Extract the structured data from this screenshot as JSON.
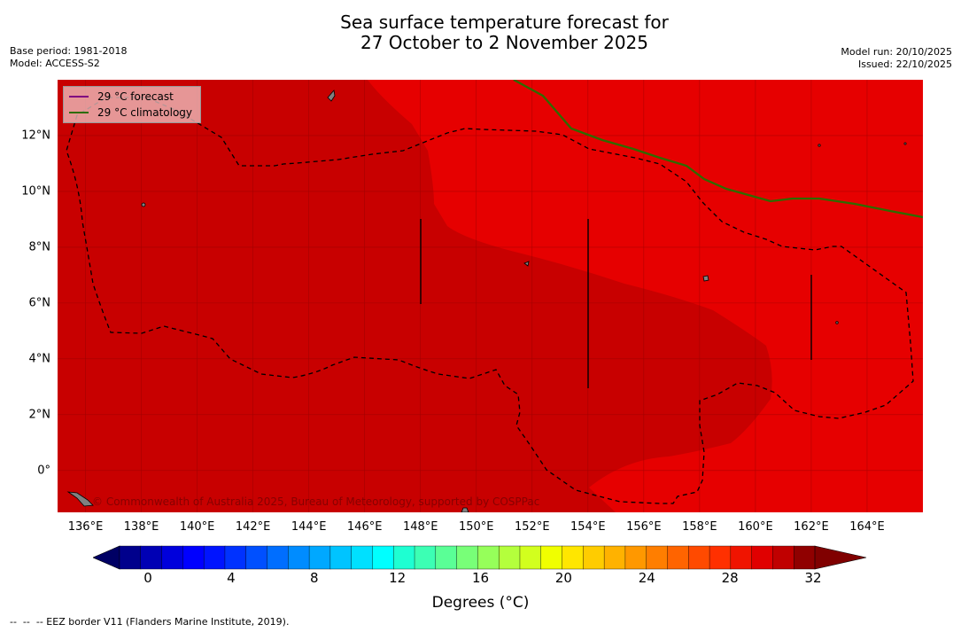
{
  "title": {
    "line1": "Sea surface temperature forecast for",
    "line2": "27 October to 2 November 2025"
  },
  "meta": {
    "base_period": "Base period: 1981-2018",
    "model": "Model: ACCESS-S2",
    "model_run": "Model run: 20/10/2025",
    "issued": "Issued: 22/10/2025"
  },
  "legend": {
    "forecast_label": "29 °C  forecast",
    "forecast_color": "#800080",
    "climatology_label": "29 °C  climatology",
    "climatology_color": "#2e6b00"
  },
  "map": {
    "lon_range": [
      135,
      166
    ],
    "lat_range": [
      -1.5,
      14
    ],
    "x_ticks": [
      "136°E",
      "138°E",
      "140°E",
      "142°E",
      "144°E",
      "146°E",
      "148°E",
      "150°E",
      "152°E",
      "154°E",
      "156°E",
      "158°E",
      "160°E",
      "162°E",
      "164°E"
    ],
    "y_ticks": [
      "12°N",
      "10°N",
      "8°N",
      "6°N",
      "4°N",
      "2°N",
      "0°"
    ],
    "colors": {
      "warm_region": "#c80000",
      "hot_region": "#e60000",
      "land": "#808080"
    },
    "copyright": "© Commonwealth of Australia 2025, Bureau of Meteorology, supported by COSPPac"
  },
  "colorbar": {
    "ticks": [
      "0",
      "4",
      "8",
      "12",
      "16",
      "20",
      "24",
      "28",
      "32"
    ],
    "label": "Degrees (°C)",
    "colors": [
      "#00008c",
      "#0000b4",
      "#0000dc",
      "#0000ff",
      "#0014ff",
      "#0032ff",
      "#0050ff",
      "#006eff",
      "#008cff",
      "#00a8ff",
      "#00c4ff",
      "#00e0ff",
      "#00ffff",
      "#1effd2",
      "#3cffb4",
      "#5aff96",
      "#78ff78",
      "#96ff5a",
      "#b4ff3c",
      "#d2ff1e",
      "#f0ff00",
      "#ffe600",
      "#ffcc00",
      "#ffb200",
      "#ff9800",
      "#ff7e00",
      "#ff6400",
      "#ff4a00",
      "#ff3000",
      "#f01400",
      "#e00000",
      "#c00000",
      "#900000"
    ],
    "under_color": "#000064",
    "over_color": "#800000"
  },
  "footer": "--  --  -- EEZ border V11 (Flanders Marine Institute, 2019)."
}
